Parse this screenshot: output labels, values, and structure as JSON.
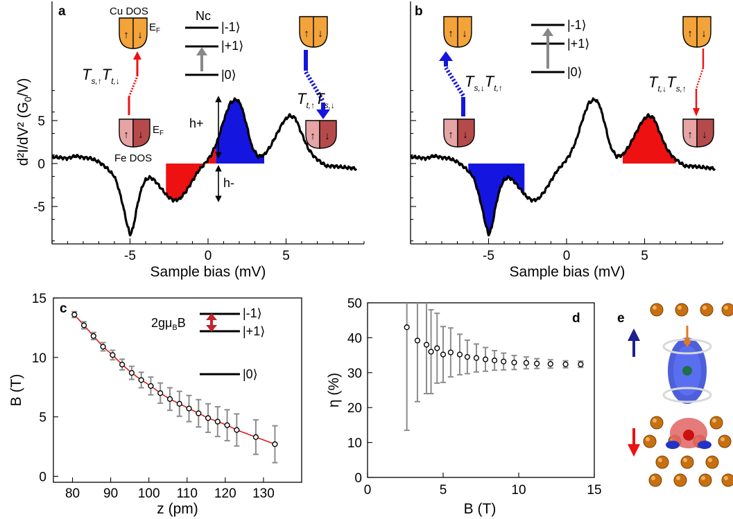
{
  "colors": {
    "up_spin": "#1515e0",
    "down_spin": "#ee1111",
    "cu_dos": "#f2a33a",
    "fe_dos_light": "#e6a4a4",
    "fe_dos_dark": "#b54a4a",
    "curve": "#000000",
    "fit": "#e01818",
    "errorbar": "#8c8c8c"
  },
  "panel_a": {
    "label": "a",
    "ylabel": "d²I/dV² (G",
    "ylabel_sub": "0",
    "ylabel_tail": "/V)",
    "xlabel": "Sample bias (mV)",
    "cu_dos_label": "Cu DOS",
    "fe_dos_label": "Fe DOS",
    "ef_top": "E",
    "ef_top_sub": "F",
    "ef_bottom": "E",
    "ef_bottom_sub": "F",
    "nc_label": "Nc",
    "level_m1": "|-1⟩",
    "level_p1": "|+1⟩",
    "level_0": "|0⟩",
    "h_plus": "h+",
    "h_minus": "h-",
    "left_process": {
      "t1": "T",
      "t1_sub": "s,↑",
      "t2": "T",
      "t2_sub": "t,↓"
    },
    "right_process": {
      "t1": "T",
      "t1_sub": "t,↑",
      "t2": "T",
      "t2_sub": "s,↓"
    }
  },
  "panel_b": {
    "label": "b",
    "xlabel": "Sample bias (mV)",
    "level_m1": "|-1⟩",
    "level_p1": "|+1⟩",
    "level_0": "|0⟩",
    "left_process": {
      "t1": "T",
      "t1_sub": "s,↓",
      "t2": "T",
      "t2_sub": "t,↑"
    },
    "right_process": {
      "t1": "T",
      "t1_sub": "t,↓",
      "t2": "T",
      "t2_sub": "s,↑"
    }
  },
  "panel_c": {
    "label": "c",
    "xlabel": "z (pm)",
    "ylabel": "B (T)",
    "zeeman_label": "2gμ",
    "zeeman_sub": "B",
    "zeeman_tail": "B",
    "level_m1": "|-1⟩",
    "level_p1": "|+1⟩",
    "level_0": "|0⟩"
  },
  "panel_d": {
    "label": "d",
    "xlabel": "B (T)",
    "ylabel": "η (%)"
  },
  "panel_e": {
    "label": "e"
  },
  "chart_data": [
    {
      "panel": "a",
      "type": "line",
      "xlabel": "Sample bias (mV)",
      "ylabel": "d²I/dV² (G0/V)",
      "xlim": [
        -10,
        10
      ],
      "ylim": [
        -9,
        9
      ],
      "xticks": [
        -5,
        0,
        5
      ],
      "yticks": [
        -5,
        0,
        5
      ],
      "x": [
        -10,
        -9.5,
        -9,
        -8.5,
        -8,
        -7.5,
        -7,
        -6.5,
        -6,
        -5.8,
        -5.5,
        -5.2,
        -5,
        -4.8,
        -4.6,
        -4.4,
        -4.2,
        -4,
        -3.7,
        -3.4,
        -3.0,
        -2.6,
        -2.2,
        -1.8,
        -1.4,
        -1.0,
        -0.6,
        -0.2,
        0.2,
        0.6,
        1.0,
        1.4,
        1.8,
        2.1,
        2.4,
        2.8,
        3.2,
        3.6,
        4.0,
        4.4,
        4.8,
        5.2,
        5.6,
        6.0,
        6.4,
        6.8,
        7.2,
        7.6,
        8.0,
        8.5,
        9.0,
        9.5
      ],
      "y": [
        0.8,
        0.7,
        0.6,
        0.9,
        0.7,
        0.6,
        0.2,
        -0.5,
        -1.5,
        -2.5,
        -4.5,
        -7.0,
        -8.3,
        -7.5,
        -5.5,
        -3.8,
        -2.6,
        -1.9,
        -1.6,
        -2.0,
        -2.9,
        -3.8,
        -4.3,
        -4.1,
        -3.2,
        -2.0,
        -0.8,
        0.0,
        1.0,
        2.6,
        5.0,
        7.0,
        7.5,
        6.9,
        5.0,
        2.0,
        0.8,
        1.0,
        2.0,
        3.4,
        4.8,
        5.6,
        5.3,
        3.5,
        1.8,
        0.8,
        0.2,
        -0.3,
        -0.3,
        -0.4,
        -0.5,
        -0.6
      ],
      "filled_regions": [
        {
          "color": "#1515e0",
          "x_range": [
            0.5,
            3.6
          ],
          "side": "above"
        },
        {
          "color": "#ee1111",
          "x_range": [
            -2.7,
            0.5
          ],
          "side": "below"
        }
      ]
    },
    {
      "panel": "b",
      "type": "line",
      "xlabel": "Sample bias (mV)",
      "xlim": [
        -10,
        10
      ],
      "ylim": [
        -9,
        9
      ],
      "xticks": [
        -5,
        0,
        5
      ],
      "yticks": [
        -5,
        0,
        5
      ],
      "x": [
        -10,
        -9.5,
        -9,
        -8.5,
        -8,
        -7.5,
        -7,
        -6.5,
        -6,
        -5.8,
        -5.5,
        -5.2,
        -5,
        -4.8,
        -4.6,
        -4.4,
        -4.2,
        -4,
        -3.7,
        -3.4,
        -3.0,
        -2.6,
        -2.2,
        -1.8,
        -1.4,
        -1.0,
        -0.6,
        -0.2,
        0.2,
        0.6,
        1.0,
        1.4,
        1.8,
        2.1,
        2.4,
        2.8,
        3.2,
        3.6,
        4.0,
        4.4,
        4.8,
        5.2,
        5.6,
        6.0,
        6.4,
        6.8,
        7.2,
        7.6,
        8.0,
        8.5,
        9.0,
        9.5
      ],
      "y": [
        0.8,
        0.7,
        0.6,
        0.9,
        0.7,
        0.6,
        0.2,
        -0.5,
        -1.5,
        -2.5,
        -4.5,
        -7.0,
        -8.3,
        -7.5,
        -5.5,
        -3.8,
        -2.6,
        -1.9,
        -1.6,
        -2.0,
        -2.9,
        -3.8,
        -4.3,
        -4.1,
        -3.2,
        -2.0,
        -0.8,
        0.0,
        1.0,
        2.6,
        5.0,
        7.0,
        7.5,
        6.9,
        5.0,
        2.0,
        0.8,
        1.0,
        2.0,
        3.4,
        4.8,
        5.6,
        5.3,
        3.5,
        1.8,
        0.8,
        0.2,
        -0.3,
        -0.3,
        -0.4,
        -0.5,
        -0.6
      ],
      "filled_regions": [
        {
          "color": "#1515e0",
          "x_range": [
            -6.3,
            -2.7
          ],
          "side": "below"
        },
        {
          "color": "#ee1111",
          "x_range": [
            3.6,
            7.0
          ],
          "side": "above"
        }
      ]
    },
    {
      "panel": "c",
      "type": "scatter",
      "xlabel": "z (pm)",
      "ylabel": "B (T)",
      "xlim": [
        75,
        140
      ],
      "ylim": [
        -0.5,
        15
      ],
      "xticks": [
        80,
        90,
        100,
        110,
        120,
        130
      ],
      "yticks": [
        0,
        5,
        10,
        15
      ],
      "x": [
        80.5,
        83,
        85.5,
        88,
        90.5,
        93,
        95.5,
        98,
        100.5,
        103,
        105.5,
        108,
        110.5,
        113,
        115.5,
        118,
        120.5,
        123,
        128,
        133
      ],
      "y": [
        13.6,
        12.7,
        11.8,
        10.9,
        10.2,
        9.4,
        8.7,
        8.1,
        7.6,
        7.0,
        6.5,
        6.1,
        5.7,
        5.3,
        4.9,
        4.6,
        4.3,
        3.9,
        3.3,
        2.7
      ],
      "yerr": [
        0.25,
        0.3,
        0.3,
        0.35,
        0.4,
        0.45,
        0.55,
        0.65,
        0.75,
        0.85,
        0.95,
        1.05,
        1.1,
        1.15,
        1.2,
        1.25,
        1.3,
        1.35,
        1.45,
        1.55
      ],
      "fit": "exponential fit (red line)"
    },
    {
      "panel": "d",
      "type": "scatter",
      "xlabel": "B (T)",
      "ylabel": "η (%)",
      "xlim": [
        0,
        15
      ],
      "ylim": [
        0,
        50
      ],
      "xticks": [
        0,
        5,
        10,
        15
      ],
      "yticks": [
        0,
        10,
        20,
        30,
        40,
        50
      ],
      "x": [
        2.6,
        3.3,
        3.9,
        4.2,
        4.6,
        5.0,
        5.5,
        6.1,
        6.6,
        7.2,
        7.8,
        8.4,
        9.0,
        9.7,
        10.5,
        11.2,
        12.1,
        13.1,
        14.1
      ],
      "y": [
        43.0,
        39.2,
        38.0,
        36.0,
        37.0,
        35.2,
        35.8,
        35.2,
        34.5,
        34.2,
        33.8,
        33.5,
        33.2,
        32.9,
        32.8,
        32.6,
        32.5,
        32.4,
        32.4
      ],
      "yerr": [
        29.5,
        17.5,
        14.0,
        12.0,
        10.0,
        8.0,
        7.0,
        5.8,
        4.8,
        4.0,
        3.4,
        2.8,
        2.4,
        2.0,
        1.7,
        1.4,
        1.2,
        1.0,
        0.9
      ]
    }
  ]
}
